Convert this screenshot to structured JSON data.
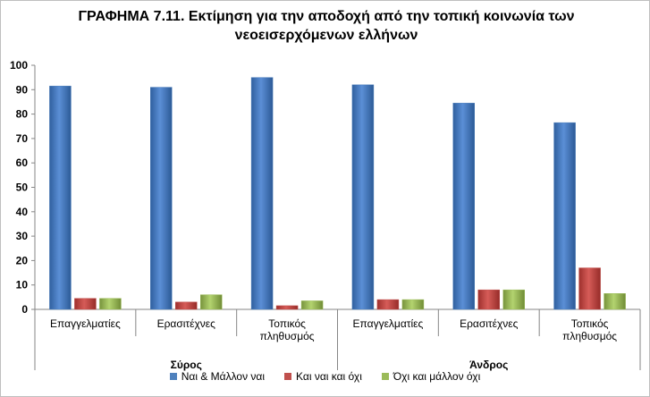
{
  "chart_data": {
    "type": "bar",
    "title_lines": [
      "ΓΡΑΦΗΜΑ 7.11. Εκτίμηση για την αποδοχή από την τοπική κοινωνία των",
      "νεοεισερχόμενων ελλήνων"
    ],
    "groups": [
      {
        "name": "Σύρος",
        "categories": [
          "Επαγγελματίες",
          "Ερασιτέχνες",
          "Τοπικός πληθυσμός"
        ]
      },
      {
        "name": "Άνδρος",
        "categories": [
          "Επαγγελματίες",
          "Ερασιτέχνες",
          "Τοπικός πληθυσμός"
        ]
      }
    ],
    "category_label_lines": [
      [
        "Επαγγελματίες"
      ],
      [
        "Ερασιτέχνες"
      ],
      [
        "Τοπικός",
        "πληθυσμός"
      ],
      [
        "Επαγγελματίες"
      ],
      [
        "Ερασιτέχνες"
      ],
      [
        "Τοπικός",
        "πληθυσμός"
      ]
    ],
    "series": [
      {
        "name": "Ναι & Μάλλον ναι",
        "color": "#4f81bd",
        "values": [
          91.5,
          91,
          95,
          92,
          84.5,
          76.5
        ]
      },
      {
        "name": "Και ναι και όχι",
        "color": "#c0504d",
        "values": [
          4.5,
          3,
          1.5,
          4,
          8,
          17
        ]
      },
      {
        "name": "Όχι και μάλλον όχι",
        "color": "#9bbb59",
        "values": [
          4.5,
          6,
          3.5,
          4,
          8,
          6.5
        ]
      }
    ],
    "ylim": [
      0,
      100
    ],
    "yticks": [
      "0",
      "10",
      "20",
      "30",
      "40",
      "50",
      "60",
      "70",
      "80",
      "90",
      "100"
    ],
    "grid": false,
    "legend_position": "bottom"
  }
}
